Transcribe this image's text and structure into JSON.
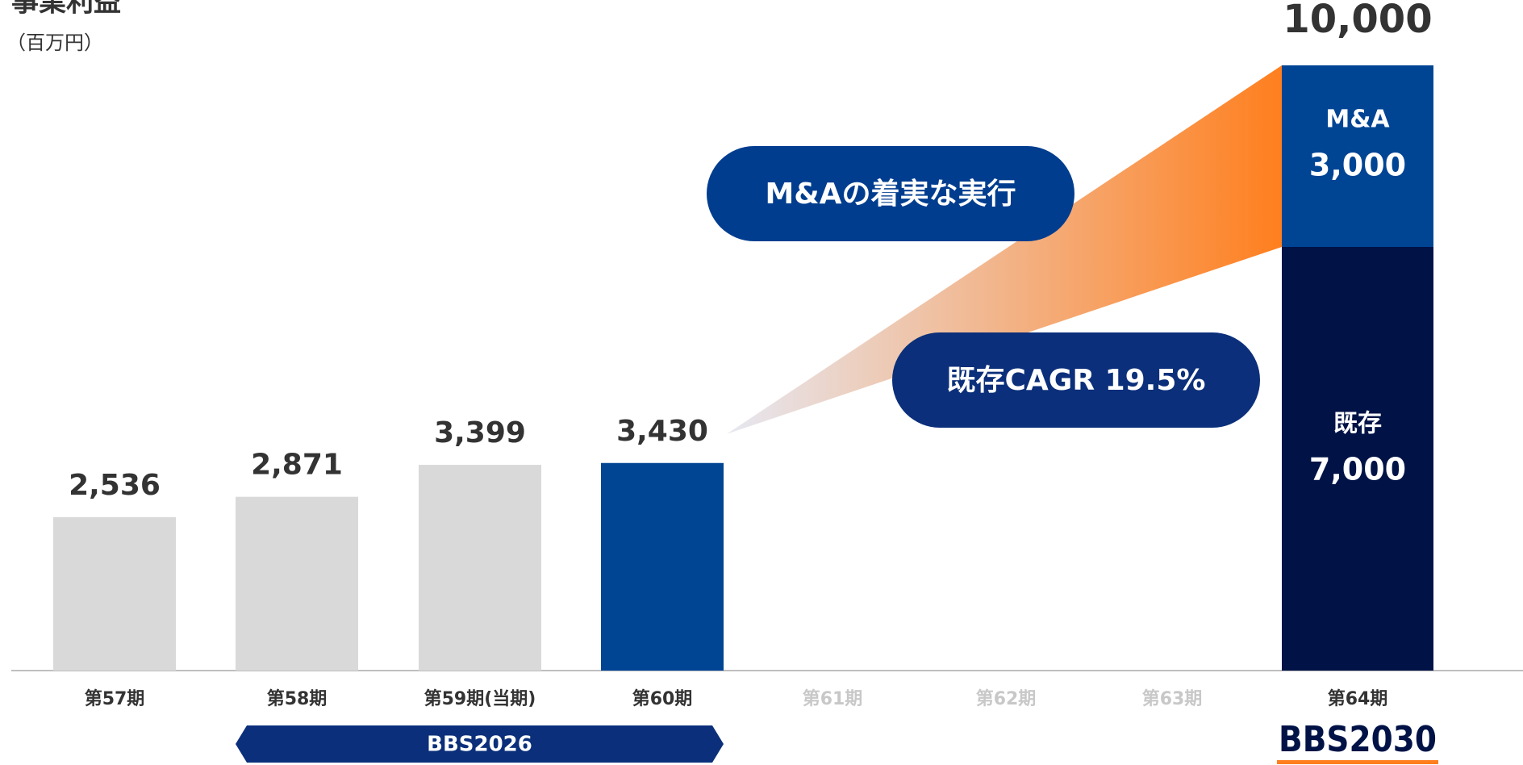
{
  "chart_data": {
    "type": "bar",
    "title": "事業利益",
    "subtitle": "（百万円）",
    "categories": [
      "第57期",
      "第58期",
      "第59期(当期)",
      "第60期",
      "第61期",
      "第62期",
      "第63期",
      "第64期"
    ],
    "values": [
      2536,
      2871,
      3399,
      3430,
      null,
      null,
      null,
      null
    ],
    "value_labels": [
      "2,536",
      "2,871",
      "3,399",
      "3,430",
      null,
      null,
      null,
      null
    ],
    "colors": [
      "#d9d9d9",
      "#d9d9d9",
      "#d9d9d9",
      "#004494",
      null,
      null,
      null,
      null
    ],
    "category_colors": [
      "#333333",
      "#333333",
      "#333333",
      "#333333",
      "#c8c8c8",
      "#c8c8c8",
      "#c8c8c8",
      "#333333"
    ],
    "stack": {
      "category": 7,
      "segments": [
        {
          "name": "既存",
          "value": 7000,
          "value_label": "7,000",
          "color": "#001246"
        },
        {
          "name": "M&A",
          "value": 3000,
          "value_label": "3,000",
          "color": "#004494"
        }
      ],
      "total": 10000,
      "total_label": "10,000"
    },
    "ylim": [
      0,
      10000
    ],
    "annotations": [
      "M&Aの着実な実行",
      "既存CAGR 19.5%"
    ],
    "periods": [
      {
        "label": "BBS2026",
        "from": 1,
        "to": 3
      },
      {
        "label": "BBS2030",
        "from": 7,
        "to": 7
      }
    ]
  }
}
